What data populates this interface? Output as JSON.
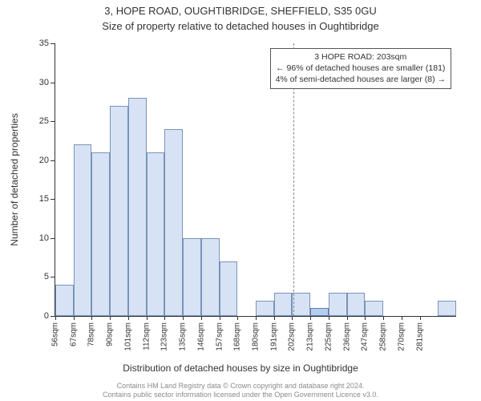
{
  "title": "3, HOPE ROAD, OUGHTIBRIDGE, SHEFFIELD, S35 0GU",
  "subtitle": "Size of property relative to detached houses in Oughtibridge",
  "chart": {
    "type": "histogram",
    "y_axis": {
      "label": "Number of detached properties",
      "min": 0,
      "max": 35,
      "tick_step": 5,
      "ticks": [
        0,
        5,
        10,
        15,
        20,
        25,
        30,
        35
      ]
    },
    "x_axis": {
      "label": "Distribution of detached houses by size in Oughtibridge",
      "unit_suffix": "sqm",
      "tick_values": [
        56,
        67,
        78,
        90,
        101,
        112,
        123,
        135,
        146,
        157,
        168,
        180,
        191,
        202,
        213,
        225,
        236,
        247,
        258,
        270,
        281
      ]
    },
    "bars": {
      "values": [
        4,
        22,
        21,
        27,
        28,
        21,
        24,
        10,
        10,
        7,
        0,
        2,
        3,
        3,
        1,
        3,
        3,
        2,
        0,
        0,
        0,
        2
      ],
      "fill_color": "#d7e3f4",
      "border_color": "#7a93b8",
      "highlight_fill": "#b7cdec",
      "highlight_border": "#5f7fb0",
      "highlight_index": 14,
      "bar_width_ratio": 1.0
    },
    "marker": {
      "x_value": 203,
      "line_color": "#888888",
      "dash": "2,3"
    },
    "annotation": {
      "lines": [
        "3 HOPE ROAD: 203sqm",
        "← 96% of detached houses are smaller (181)",
        "4% of semi-detached houses are larger (8) →"
      ],
      "border_color": "#555555",
      "background": "#ffffff",
      "fontsize": 10.5
    },
    "plot": {
      "background_color": "#ffffff",
      "axis_color": "#333333",
      "label_fontsize": 12,
      "tick_fontsize": 11,
      "xtick_fontsize": 10
    }
  },
  "attribution": {
    "line1": "Contains HM Land Registry data © Crown copyright and database right 2024.",
    "line2": "Contains public sector information licensed under the Open Government Licence v3.0."
  }
}
